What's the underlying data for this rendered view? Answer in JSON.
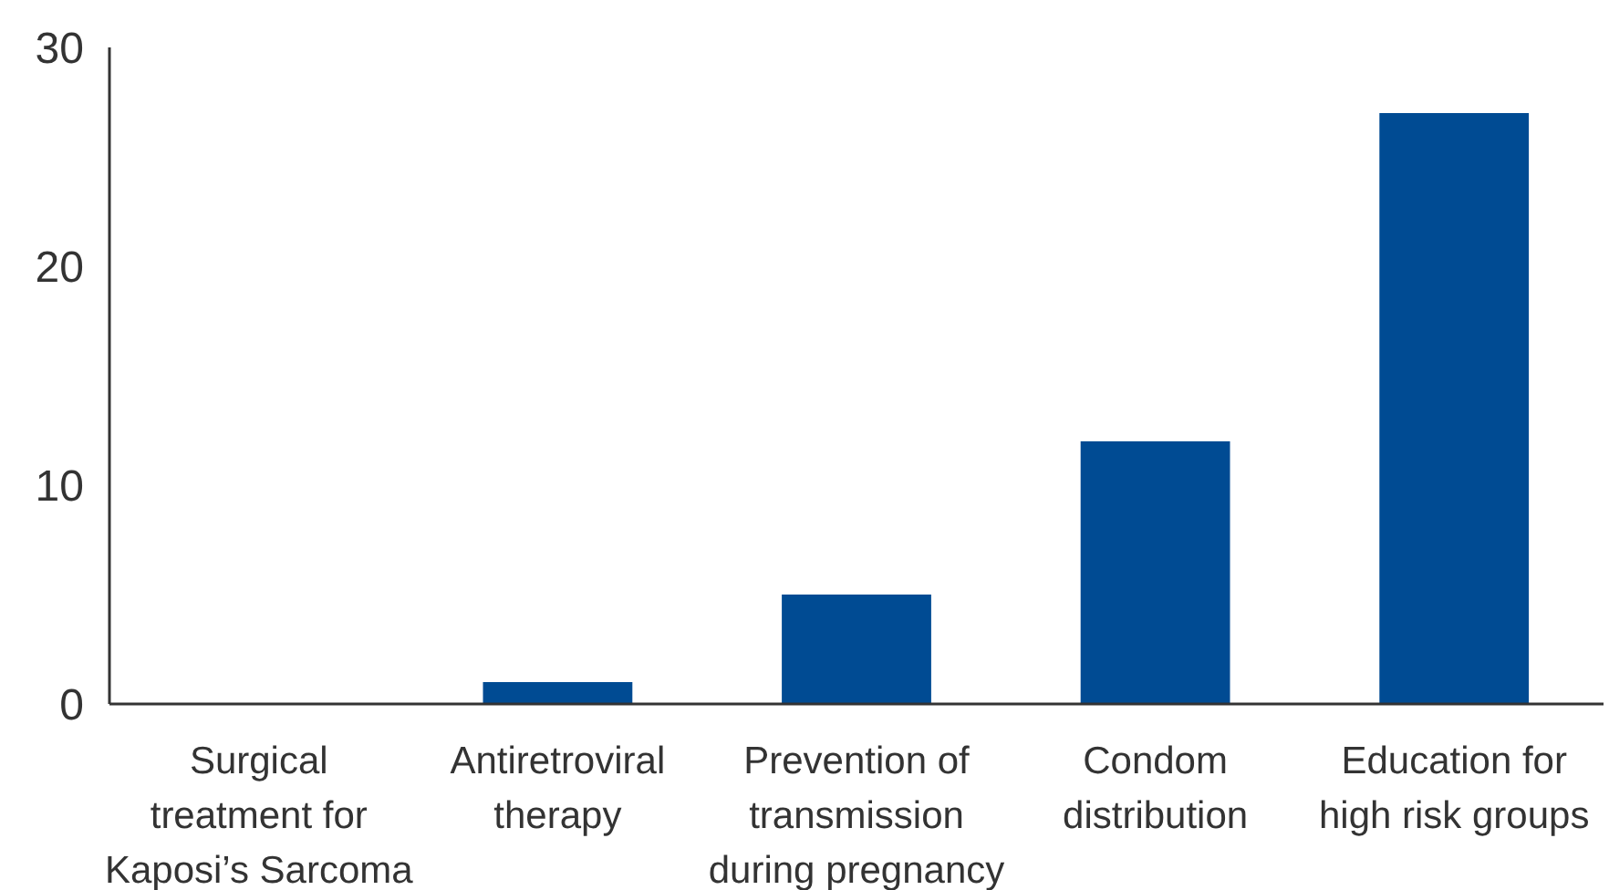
{
  "chart_data": {
    "type": "bar",
    "categories": [
      "Surgical treatment for Kaposi’s Sarcoma",
      "Antiretroviral therapy",
      "Prevention of transmission during pregnancy",
      "Condom distribution",
      "Education for high risk groups"
    ],
    "values": [
      0,
      1,
      5,
      12,
      27
    ],
    "color": "#004b93",
    "ylim": [
      0,
      30
    ],
    "yticks": [
      0,
      10,
      20,
      30
    ],
    "grid": false
  }
}
